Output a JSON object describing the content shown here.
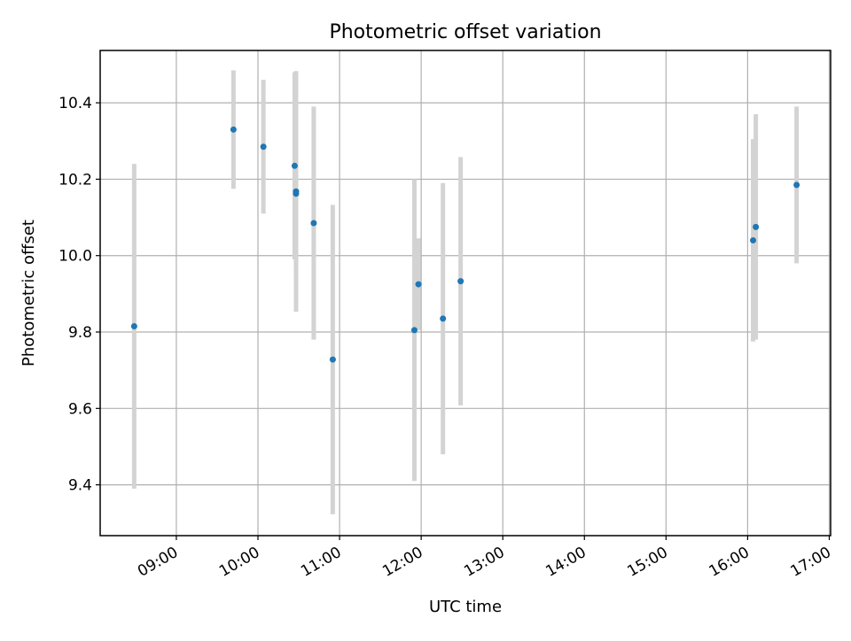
{
  "chart_data": {
    "type": "scatter",
    "title": "Photometric offset variation",
    "xlabel": "UTC time",
    "ylabel": "Photometric offset",
    "x_ticks": [
      "09:00",
      "10:00",
      "11:00",
      "12:00",
      "13:00",
      "14:00",
      "15:00",
      "16:00",
      "17:00"
    ],
    "y_ticks": [
      "9.4",
      "9.6",
      "9.8",
      "10.0",
      "10.2",
      "10.4"
    ],
    "xlim": [
      "08:04",
      "17:01"
    ],
    "ylim": [
      9.267,
      10.537
    ],
    "grid": true,
    "colors": {
      "marker": "#1f77b4",
      "errorbar": "#d3d3d3",
      "grid": "#b0b0b0"
    },
    "points": [
      {
        "t": "08:29",
        "y": 9.815,
        "err": 0.425
      },
      {
        "t": "09:42",
        "y": 10.33,
        "err": 0.155
      },
      {
        "t": "10:04",
        "y": 10.285,
        "err": 0.175
      },
      {
        "t": "10:27",
        "y": 10.235,
        "err": 0.245
      },
      {
        "t": "10:28",
        "y": 10.168,
        "err": 0.315
      },
      {
        "t": "10:28",
        "y": 10.162,
        "err": 0.22
      },
      {
        "t": "10:41",
        "y": 10.085,
        "err": 0.305
      },
      {
        "t": "10:55",
        "y": 9.728,
        "err": 0.405
      },
      {
        "t": "11:55",
        "y": 9.805,
        "err": 0.395
      },
      {
        "t": "11:58",
        "y": 9.925,
        "err": 0.12
      },
      {
        "t": "12:16",
        "y": 9.835,
        "err": 0.355
      },
      {
        "t": "12:29",
        "y": 9.933,
        "err": 0.325
      },
      {
        "t": "16:04",
        "y": 10.04,
        "err": 0.265
      },
      {
        "t": "16:06",
        "y": 10.075,
        "err": 0.295
      },
      {
        "t": "16:36",
        "y": 10.185,
        "err": 0.205
      }
    ]
  }
}
